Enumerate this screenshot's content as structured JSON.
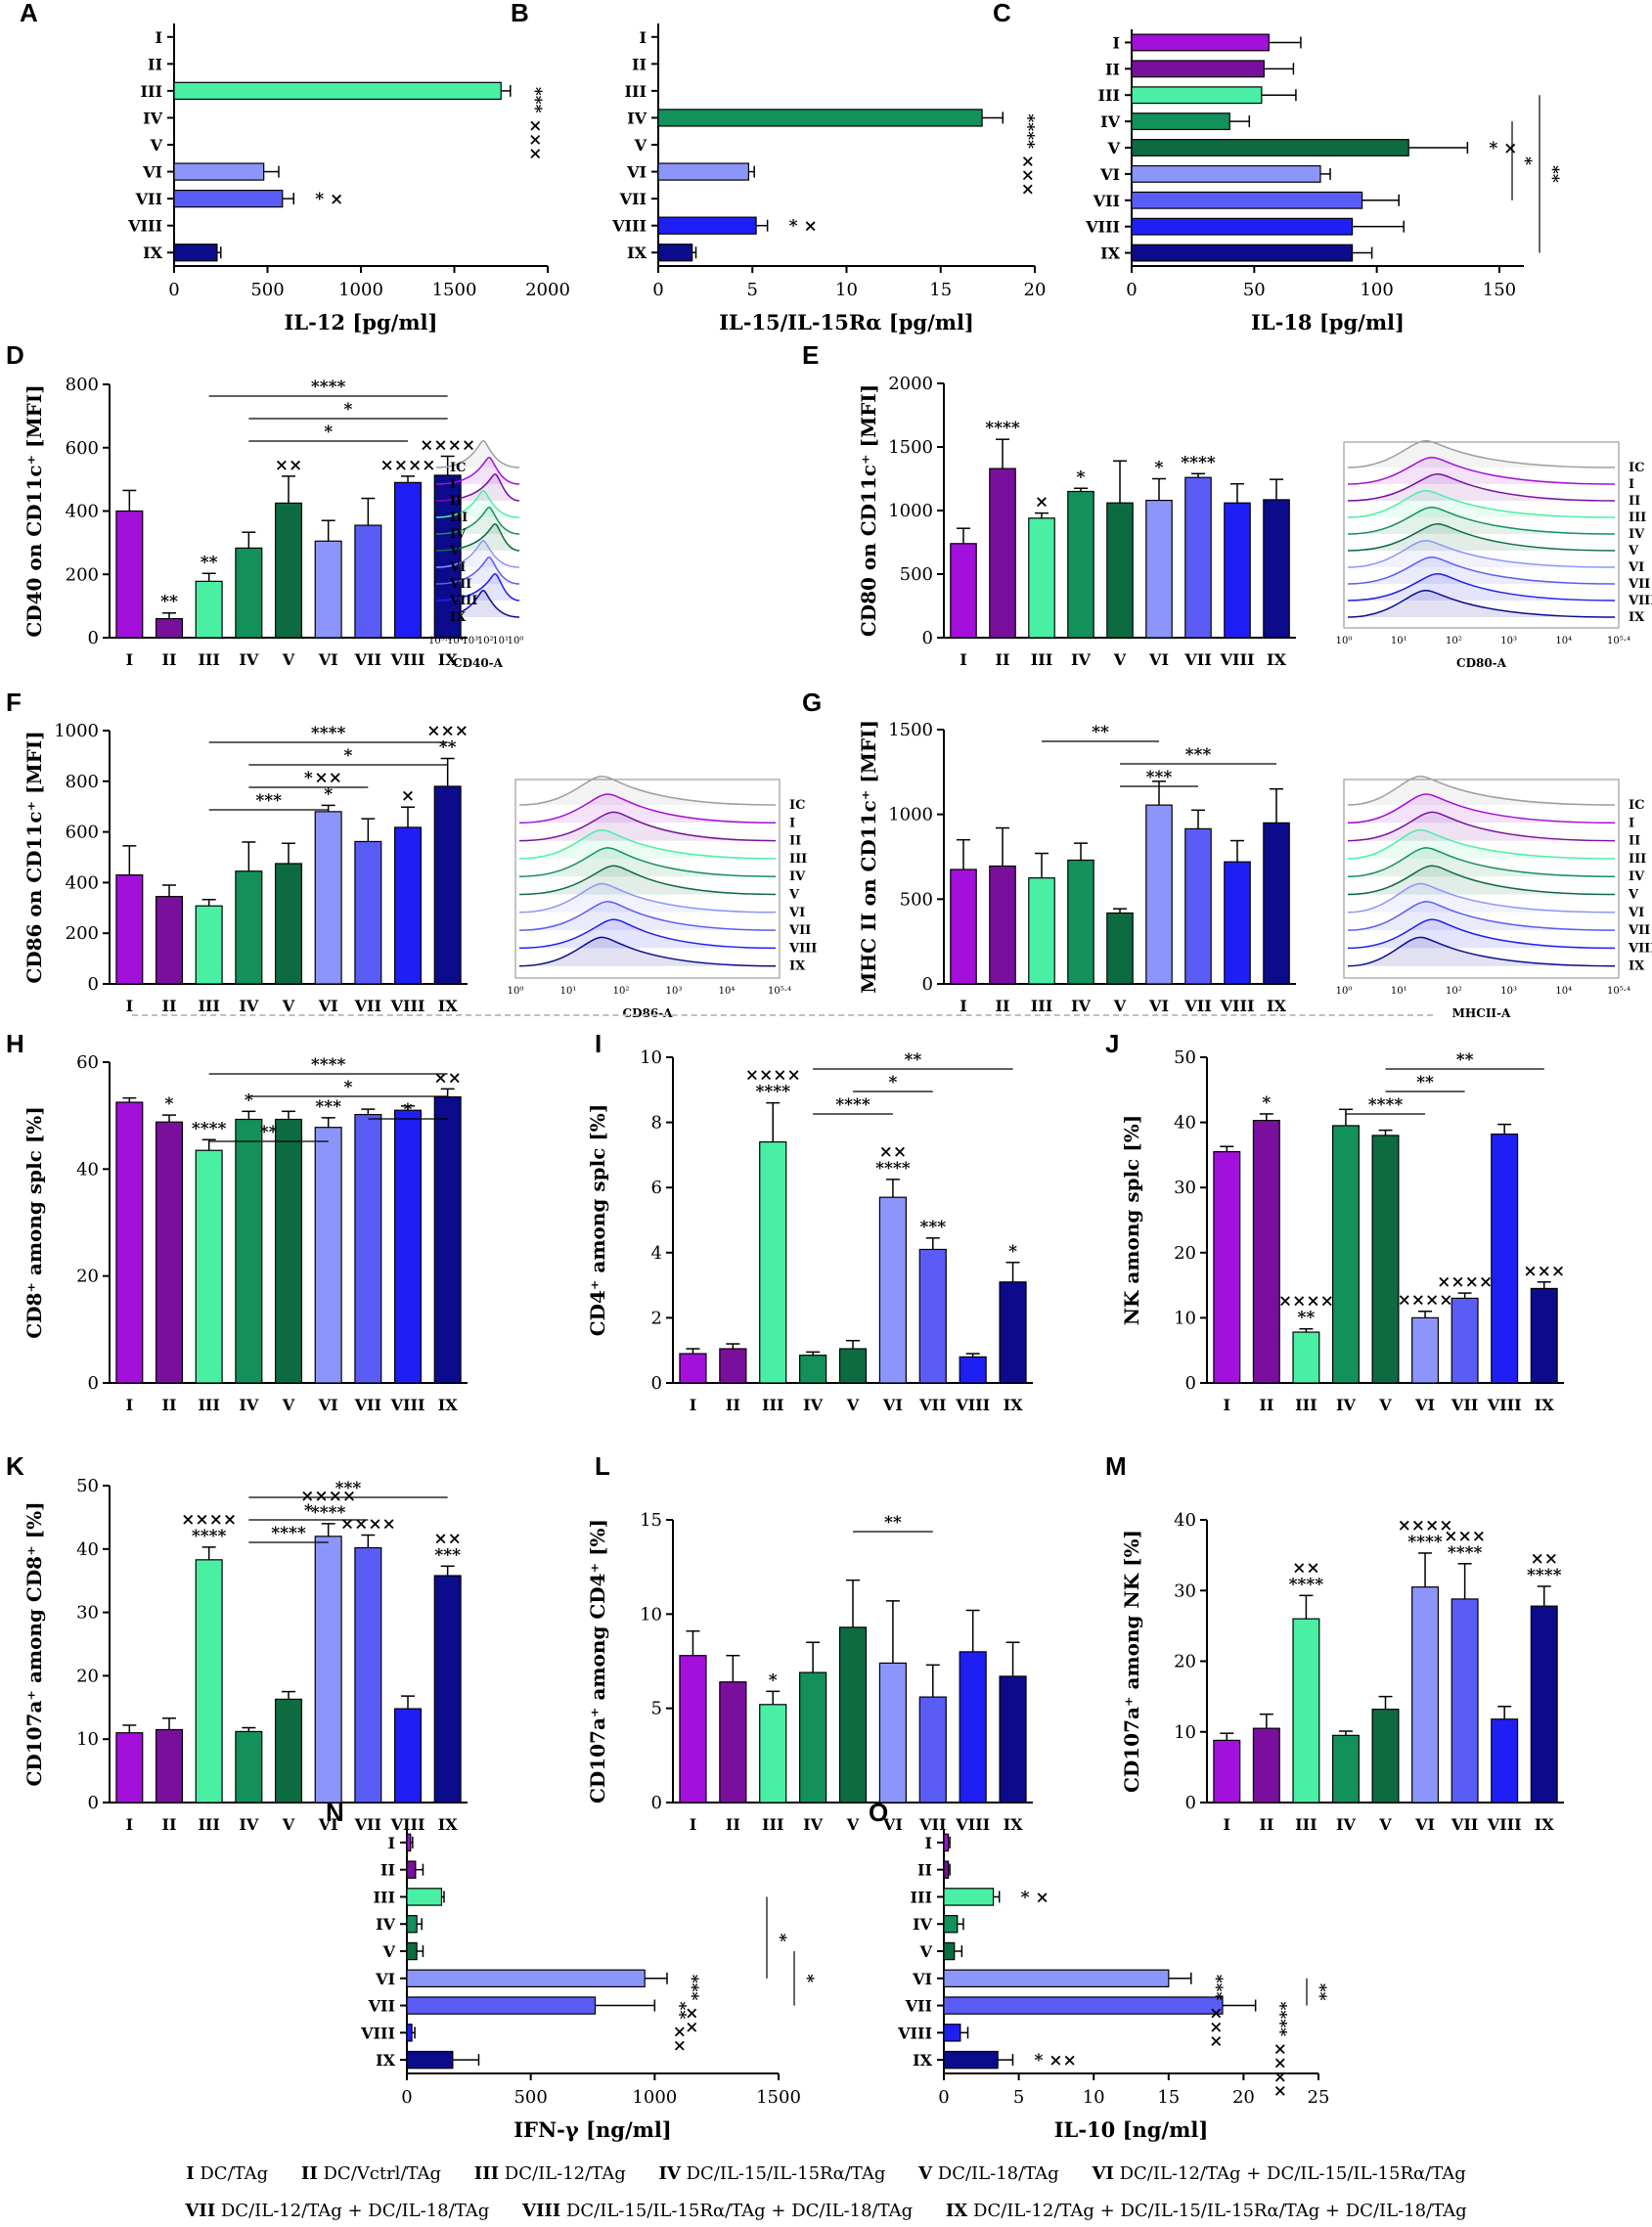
{
  "colors": {
    "I": "#a30fdb",
    "II": "#7a0f9e",
    "III": "#49f0a4",
    "IV": "#12915a",
    "V": "#0d6b41",
    "VI": "#8c95f9",
    "VII": "#5a5cf6",
    "VIII": "#1f1ff5",
    "IX": "#0c0b8c"
  },
  "groups": [
    "I",
    "II",
    "III",
    "IV",
    "V",
    "VI",
    "VII",
    "VIII",
    "IX"
  ],
  "histogram_groups": [
    "IC",
    "I",
    "II",
    "III",
    "IV",
    "V",
    "VI",
    "VII",
    "VIII",
    "IX"
  ],
  "chart_data": [
    {
      "id": "A",
      "type": "bar",
      "orientation": "horizontal",
      "xlabel": "IL-12 [pg/ml]",
      "xlim": [
        0,
        2000
      ],
      "xticks": [
        0,
        500,
        1000,
        1500,
        2000
      ],
      "values": [
        0,
        0,
        1750,
        0,
        0,
        480,
        580,
        0,
        230
      ],
      "errors": [
        0,
        0,
        50,
        0,
        0,
        80,
        60,
        0,
        20
      ],
      "marks": [
        {
          "group": "III",
          "text": "*** ×××"
        },
        {
          "group": "VII",
          "text": "* ×"
        }
      ],
      "brackets": []
    },
    {
      "id": "B",
      "type": "bar",
      "orientation": "horizontal",
      "xlabel": "IL-15/IL-15Rα [pg/ml]",
      "xlim": [
        0,
        20
      ],
      "xticks": [
        0,
        5,
        10,
        15,
        20
      ],
      "values": [
        0,
        0,
        0,
        17.2,
        0,
        4.8,
        0,
        5.2,
        1.8
      ],
      "errors": [
        0,
        0,
        0,
        1.1,
        0,
        0.3,
        0,
        0.6,
        0.2
      ],
      "marks": [
        {
          "group": "IV",
          "text": "**** ×××"
        },
        {
          "group": "VIII",
          "text": "* ×"
        }
      ],
      "brackets": []
    },
    {
      "id": "C",
      "type": "bar",
      "orientation": "horizontal",
      "xlabel": "IL-18 [pg/ml]",
      "xlim": [
        0,
        160
      ],
      "xticks": [
        0,
        50,
        100,
        150
      ],
      "values": [
        56,
        54,
        53,
        40,
        113,
        77,
        94,
        90,
        90
      ],
      "errors": [
        13,
        12,
        14,
        8,
        24,
        4,
        15,
        21,
        8
      ],
      "marks": [
        {
          "group": "V",
          "text": "* ×"
        }
      ],
      "brackets": [
        {
          "from": "IV",
          "to": "VII",
          "text": "*"
        },
        {
          "from": "III",
          "to": "IX",
          "text": "**"
        }
      ]
    },
    {
      "id": "D",
      "type": "bar",
      "ylabel": "CD40 on CD11c⁺ [MFI]",
      "ylim": [
        0,
        800
      ],
      "yticks": [
        0,
        200,
        400,
        600,
        800
      ],
      "values": [
        400,
        60,
        178,
        283,
        425,
        305,
        355,
        490,
        513
      ],
      "errors": [
        65,
        18,
        25,
        50,
        85,
        65,
        85,
        20,
        60
      ],
      "marks": [
        {
          "group": "II",
          "text": "**"
        },
        {
          "group": "III",
          "text": "**"
        },
        {
          "group": "V",
          "text": "××"
        },
        {
          "group": "VIII",
          "text": "××××"
        },
        {
          "group": "IX",
          "text": "××××"
        }
      ],
      "brackets": [
        {
          "from": "III",
          "to": "IX",
          "text": "****"
        },
        {
          "from": "IV",
          "to": "IX",
          "text": "*"
        },
        {
          "from": "IV",
          "to": "VIII",
          "text": "*"
        }
      ],
      "histogram_xlabel": "CD40-A"
    },
    {
      "id": "E",
      "type": "bar",
      "ylabel": "CD80 on CD11c⁺ [MFI]",
      "ylim": [
        0,
        2000
      ],
      "yticks": [
        0,
        500,
        1000,
        1500,
        2000
      ],
      "values": [
        740,
        1330,
        940,
        1150,
        1060,
        1080,
        1260,
        1060,
        1085
      ],
      "errors": [
        120,
        230,
        40,
        25,
        330,
        170,
        30,
        150,
        160
      ],
      "marks": [
        {
          "group": "II",
          "text": "****"
        },
        {
          "group": "III",
          "text": "×"
        },
        {
          "group": "IV",
          "text": "*"
        },
        {
          "group": "VI",
          "text": "*"
        },
        {
          "group": "VII",
          "text": "****"
        }
      ],
      "brackets": [],
      "histogram_xlabel": "CD80-A"
    },
    {
      "id": "F",
      "type": "bar",
      "ylabel": "CD86 on CD11c⁺ [MFI]",
      "ylim": [
        0,
        1000
      ],
      "yticks": [
        0,
        200,
        400,
        600,
        800,
        1000
      ],
      "values": [
        430,
        345,
        308,
        445,
        475,
        680,
        562,
        618,
        780
      ],
      "errors": [
        115,
        45,
        25,
        115,
        80,
        25,
        90,
        80,
        110
      ],
      "marks": [
        {
          "group": "VI",
          "text": "××\n*"
        },
        {
          "group": "VIII",
          "text": "×"
        },
        {
          "group": "IX",
          "text": "×××\n**"
        }
      ],
      "brackets": [
        {
          "from": "III",
          "to": "IX",
          "text": "****"
        },
        {
          "from": "IV",
          "to": "IX",
          "text": "*"
        },
        {
          "from": "IV",
          "to": "VII",
          "text": "*"
        },
        {
          "from": "III",
          "to": "VI",
          "text": "***"
        }
      ],
      "histogram_xlabel": "CD86-A"
    },
    {
      "id": "G",
      "type": "bar",
      "ylabel": "MHC II on CD11c⁺ [MFI]",
      "ylim": [
        0,
        1500
      ],
      "yticks": [
        0,
        500,
        1000,
        1500
      ],
      "values": [
        675,
        695,
        625,
        730,
        418,
        1055,
        915,
        720,
        950
      ],
      "errors": [
        175,
        225,
        145,
        100,
        25,
        140,
        110,
        125,
        200
      ],
      "marks": [],
      "brackets": [
        {
          "from": "III",
          "to": "VI",
          "text": "**"
        },
        {
          "from": "V",
          "to": "IX",
          "text": "***"
        },
        {
          "from": "V",
          "to": "VII",
          "text": "***"
        }
      ],
      "histogram_xlabel": "MHCII-A"
    },
    {
      "id": "H",
      "type": "bar",
      "ylabel": "CD8⁺ among splc [%]",
      "ylim": [
        0,
        60
      ],
      "yticks": [
        0,
        20,
        40,
        60
      ],
      "values": [
        52.5,
        48.8,
        43.5,
        49.3,
        49.3,
        47.8,
        50.2,
        51,
        53.5
      ],
      "errors": [
        0.8,
        1.3,
        2,
        1.5,
        1.5,
        1.8,
        1,
        0.8,
        1.5
      ],
      "marks": [
        {
          "group": "II",
          "text": "*"
        },
        {
          "group": "III",
          "text": "****"
        },
        {
          "group": "IV",
          "text": "*"
        },
        {
          "group": "VI",
          "text": "***"
        },
        {
          "group": "IX",
          "text": "××"
        }
      ],
      "brackets": [
        {
          "from": "III",
          "to": "IX",
          "text": "****"
        },
        {
          "from": "IV",
          "to": "IX",
          "text": "*"
        },
        {
          "from": "VII",
          "to": "IX",
          "text": "*"
        },
        {
          "from": "III",
          "to": "VI",
          "text": "**"
        }
      ]
    },
    {
      "id": "I",
      "type": "bar",
      "ylabel": "CD4⁺ among splc [%]",
      "ylim": [
        0,
        10
      ],
      "yticks": [
        0,
        2,
        4,
        6,
        8,
        10
      ],
      "values": [
        0.9,
        1.05,
        7.4,
        0.85,
        1.05,
        5.7,
        4.1,
        0.8,
        3.1
      ],
      "errors": [
        0.15,
        0.15,
        1.2,
        0.1,
        0.25,
        0.55,
        0.35,
        0.1,
        0.6
      ],
      "marks": [
        {
          "group": "III",
          "text": "××××\n****"
        },
        {
          "group": "VI",
          "text": "××\n****"
        },
        {
          "group": "VII",
          "text": "***"
        },
        {
          "group": "IX",
          "text": "*"
        }
      ],
      "brackets": [
        {
          "from": "IV",
          "to": "IX",
          "text": "**"
        },
        {
          "from": "V",
          "to": "VII",
          "text": "*"
        },
        {
          "from": "IV",
          "to": "VI",
          "text": "****"
        }
      ]
    },
    {
      "id": "J",
      "type": "bar",
      "ylabel": "NK among splc [%]",
      "ylim": [
        0,
        50
      ],
      "yticks": [
        0,
        10,
        20,
        30,
        40,
        50
      ],
      "values": [
        35.5,
        40.3,
        7.8,
        39.5,
        38,
        10,
        13,
        38.2,
        14.5
      ],
      "errors": [
        0.8,
        1,
        0.5,
        2.5,
        0.8,
        1,
        0.8,
        1.5,
        1
      ],
      "marks": [
        {
          "group": "II",
          "text": "*"
        },
        {
          "group": "III",
          "text": "××××\n**"
        },
        {
          "group": "VI",
          "text": "××××"
        },
        {
          "group": "VII",
          "text": "××××"
        },
        {
          "group": "IX",
          "text": "×××"
        }
      ],
      "brackets": [
        {
          "from": "V",
          "to": "IX",
          "text": "**"
        },
        {
          "from": "V",
          "to": "VII",
          "text": "**"
        },
        {
          "from": "IV",
          "to": "VI",
          "text": "****"
        }
      ]
    },
    {
      "id": "K",
      "type": "bar",
      "ylabel": "CD107a⁺ among CD8⁺ [%]",
      "ylim": [
        0,
        50
      ],
      "yticks": [
        0,
        10,
        20,
        30,
        40,
        50
      ],
      "values": [
        11,
        11.5,
        38.3,
        11.2,
        16.3,
        42,
        40.2,
        14.8,
        35.8
      ],
      "errors": [
        1.2,
        1.8,
        2,
        0.6,
        1.2,
        2,
        2,
        2,
        1.5
      ],
      "marks": [
        {
          "group": "III",
          "text": "××××\n****"
        },
        {
          "group": "VI",
          "text": "××××\n****"
        },
        {
          "group": "VII",
          "text": "××××"
        },
        {
          "group": "IX",
          "text": "××\n***"
        }
      ],
      "brackets": [
        {
          "from": "IV",
          "to": "IX",
          "text": "***"
        },
        {
          "from": "IV",
          "to": "VII",
          "text": "*"
        },
        {
          "from": "IV",
          "to": "VI",
          "text": "****"
        }
      ]
    },
    {
      "id": "L",
      "type": "bar",
      "ylabel": "CD107a⁺ among CD4⁺ [%]",
      "ylim": [
        0,
        15
      ],
      "yticks": [
        0,
        5,
        10,
        15
      ],
      "values": [
        7.8,
        6.4,
        5.2,
        6.9,
        9.3,
        7.4,
        5.6,
        8,
        6.7
      ],
      "errors": [
        1.3,
        1.4,
        0.7,
        1.6,
        2.5,
        3.3,
        1.7,
        2.2,
        1.8
      ],
      "marks": [
        {
          "group": "III",
          "text": "*"
        }
      ],
      "brackets": [
        {
          "from": "V",
          "to": "VII",
          "text": "**"
        }
      ]
    },
    {
      "id": "M",
      "type": "bar",
      "ylabel": "CD107a⁺ among NK [%]",
      "ylim": [
        0,
        40
      ],
      "yticks": [
        0,
        10,
        20,
        30,
        40
      ],
      "values": [
        8.8,
        10.5,
        26,
        9.5,
        13.2,
        30.5,
        28.8,
        11.8,
        27.8
      ],
      "errors": [
        1,
        2,
        3.3,
        0.6,
        1.8,
        4.8,
        5,
        1.8,
        2.8
      ],
      "marks": [
        {
          "group": "III",
          "text": "××\n****"
        },
        {
          "group": "VI",
          "text": "××××\n****"
        },
        {
          "group": "VII",
          "text": "×××\n****"
        },
        {
          "group": "IX",
          "text": "××\n****"
        }
      ],
      "brackets": []
    },
    {
      "id": "N",
      "type": "bar",
      "orientation": "horizontal",
      "xlabel": "IFN-γ [ng/ml]",
      "xlim": [
        0,
        1500
      ],
      "xticks": [
        0,
        500,
        1000,
        1500
      ],
      "values": [
        15,
        35,
        140,
        40,
        40,
        960,
        760,
        20,
        185
      ],
      "errors": [
        8,
        30,
        10,
        20,
        25,
        90,
        240,
        12,
        105
      ],
      "marks": [
        {
          "group": "VI",
          "text": "*** ××"
        },
        {
          "group": "VII",
          "text": "** ××"
        }
      ],
      "brackets": [
        {
          "from": "III",
          "to": "VI",
          "text": "*"
        },
        {
          "from": "V",
          "to": "VII",
          "text": "*"
        }
      ]
    },
    {
      "id": "O",
      "type": "bar",
      "orientation": "horizontal",
      "xlabel": "IL-10 [ng/ml]",
      "xlim": [
        0,
        25
      ],
      "xticks": [
        0,
        5,
        10,
        15,
        20,
        25
      ],
      "values": [
        0.3,
        0.3,
        3.3,
        0.9,
        0.7,
        15,
        18.6,
        1.1,
        3.6
      ],
      "errors": [
        0.1,
        0.1,
        0.4,
        0.4,
        0.5,
        1.5,
        2.2,
        0.5,
        1
      ],
      "marks": [
        {
          "group": "III",
          "text": "* ×"
        },
        {
          "group": "VI",
          "text": "*** ×××"
        },
        {
          "group": "VII",
          "text": "**** ××××"
        },
        {
          "group": "IX",
          "text": "* ××"
        }
      ],
      "brackets": [
        {
          "from": "VI",
          "to": "VII",
          "text": "**"
        }
      ]
    }
  ],
  "legend": {
    "row1": [
      {
        "num": "I",
        "label": "DC/TAg"
      },
      {
        "num": "II",
        "label": "DC/Vctrl/TAg"
      },
      {
        "num": "III",
        "label": "DC/IL-12/TAg"
      },
      {
        "num": "IV",
        "label": "DC/IL-15/IL-15Rα/TAg"
      },
      {
        "num": "V",
        "label": "DC/IL-18/TAg"
      },
      {
        "num": "VI",
        "label": "DC/IL-12/TAg + DC/IL-15/IL-15Rα/TAg"
      }
    ],
    "row2": [
      {
        "num": "VII",
        "label": "DC/IL-12/TAg + DC/IL-18/TAg"
      },
      {
        "num": "VIII",
        "label": "DC/IL-15/IL-15Rα/TAg + DC/IL-18/TAg"
      },
      {
        "num": "IX",
        "label": "DC/IL-12/TAg + DC/IL-15/IL-15Rα/TAg + DC/IL-18/TAg"
      }
    ]
  }
}
